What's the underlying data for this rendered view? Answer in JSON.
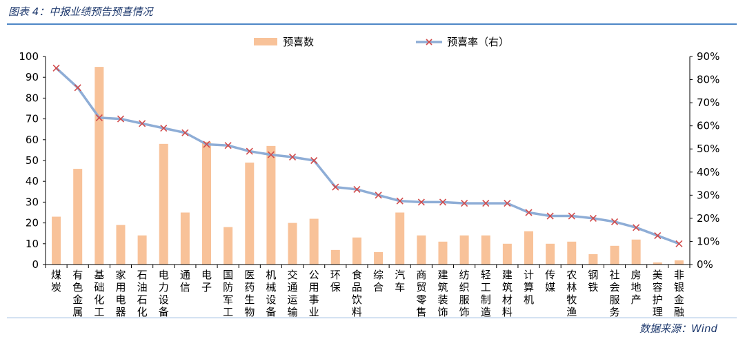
{
  "header": {
    "title": "图表 4：中报业绩预告预喜情况"
  },
  "footer": {
    "source": "数据来源：Wind"
  },
  "colors": {
    "bar": "#f8c299",
    "line": "#8eadd6",
    "marker": "#d24b4b",
    "rule": "#4d86c6",
    "title": "#1f3a6e"
  },
  "chart_data": {
    "type": "bar",
    "categories": [
      "煤炭",
      "有色金属",
      "基础化工",
      "家用电器",
      "石油石化",
      "电力设备",
      "通信",
      "电子",
      "国防军工",
      "医药生物",
      "机械设备",
      "交通运输",
      "公用事业",
      "环保",
      "食品饮料",
      "综合",
      "汽车",
      "商贸零售",
      "建筑装饰",
      "纺织服饰",
      "轻工制造",
      "建筑材料",
      "计算机",
      "传媒",
      "农林牧渔",
      "钢铁",
      "社会服务",
      "房地产",
      "美容护理",
      "非银金融"
    ],
    "series": [
      {
        "name": "预喜数",
        "type": "bar",
        "axis": "left",
        "values": [
          23,
          46,
          95,
          19,
          14,
          58,
          25,
          59,
          18,
          49,
          57,
          20,
          22,
          7,
          13,
          6,
          25,
          14,
          11,
          14,
          14,
          10,
          16,
          10,
          11,
          5,
          9,
          12,
          1,
          2
        ]
      },
      {
        "name": "预喜率（右）",
        "type": "line",
        "axis": "right",
        "values": [
          0.85,
          0.765,
          0.635,
          0.63,
          0.61,
          0.59,
          0.57,
          0.52,
          0.515,
          0.49,
          0.475,
          0.465,
          0.45,
          0.335,
          0.325,
          0.3,
          0.275,
          0.27,
          0.27,
          0.265,
          0.265,
          0.265,
          0.225,
          0.21,
          0.21,
          0.2,
          0.185,
          0.16,
          0.125,
          0.09
        ]
      }
    ],
    "yleft": {
      "ylim": [
        0,
        100
      ],
      "ticks": [
        "0",
        "10",
        "20",
        "30",
        "40",
        "50",
        "60",
        "70",
        "80",
        "90",
        "100"
      ]
    },
    "yright": {
      "ylim": [
        0,
        0.9
      ],
      "ticks": [
        "0%",
        "10%",
        "20%",
        "30%",
        "40%",
        "50%",
        "60%",
        "70%",
        "80%",
        "90%"
      ]
    },
    "legend": {
      "placement": "top-center"
    },
    "grid": false
  }
}
